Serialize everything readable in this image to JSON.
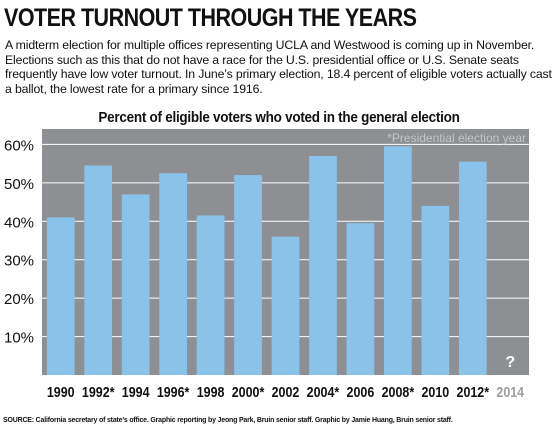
{
  "header": {
    "title": "VOTER TURNOUT THROUGH THE YEARS",
    "intro": "A midterm election for multiple offices representing UCLA and Westwood is coming up in November. Elections such as this that do not have a race for the U.S. presidential office or U.S. Senate seats frequently have low voter turnout. In June’s primary election, 18.4 percent of eligible voters actually cast a ballot, the lowest rate for a primary since 1916."
  },
  "chart_data": {
    "type": "bar",
    "title": "Percent of eligible voters who voted in the general election",
    "note": "*Presidential election year",
    "categories": [
      "1990",
      "1992*",
      "1994",
      "1996*",
      "1998",
      "2000*",
      "2002",
      "2004*",
      "2006",
      "2008*",
      "2010",
      "2012*",
      "2014"
    ],
    "values": [
      41,
      54.5,
      47,
      52.5,
      41.5,
      52,
      36,
      57,
      39.5,
      59.5,
      44,
      55.5,
      null
    ],
    "pending_label": "?",
    "yticks": [
      "10%",
      "20%",
      "30%",
      "40%",
      "50%",
      "60%"
    ],
    "ylim": [
      0,
      64
    ],
    "grid": true,
    "colors": {
      "plot_background": "#8d8f92",
      "bar": "#89c3ea",
      "grid": "#ffffff",
      "note": "#c4c6c8",
      "pending_label": "#9c9ea0",
      "pending_question": "#ffffff"
    }
  },
  "footer": {
    "source": "SOURCE: California secretary of state’s office. Graphic reporting by Jeong Park, Bruin senior staff. Graphic by Jamie Huang, Bruin senior staff."
  }
}
